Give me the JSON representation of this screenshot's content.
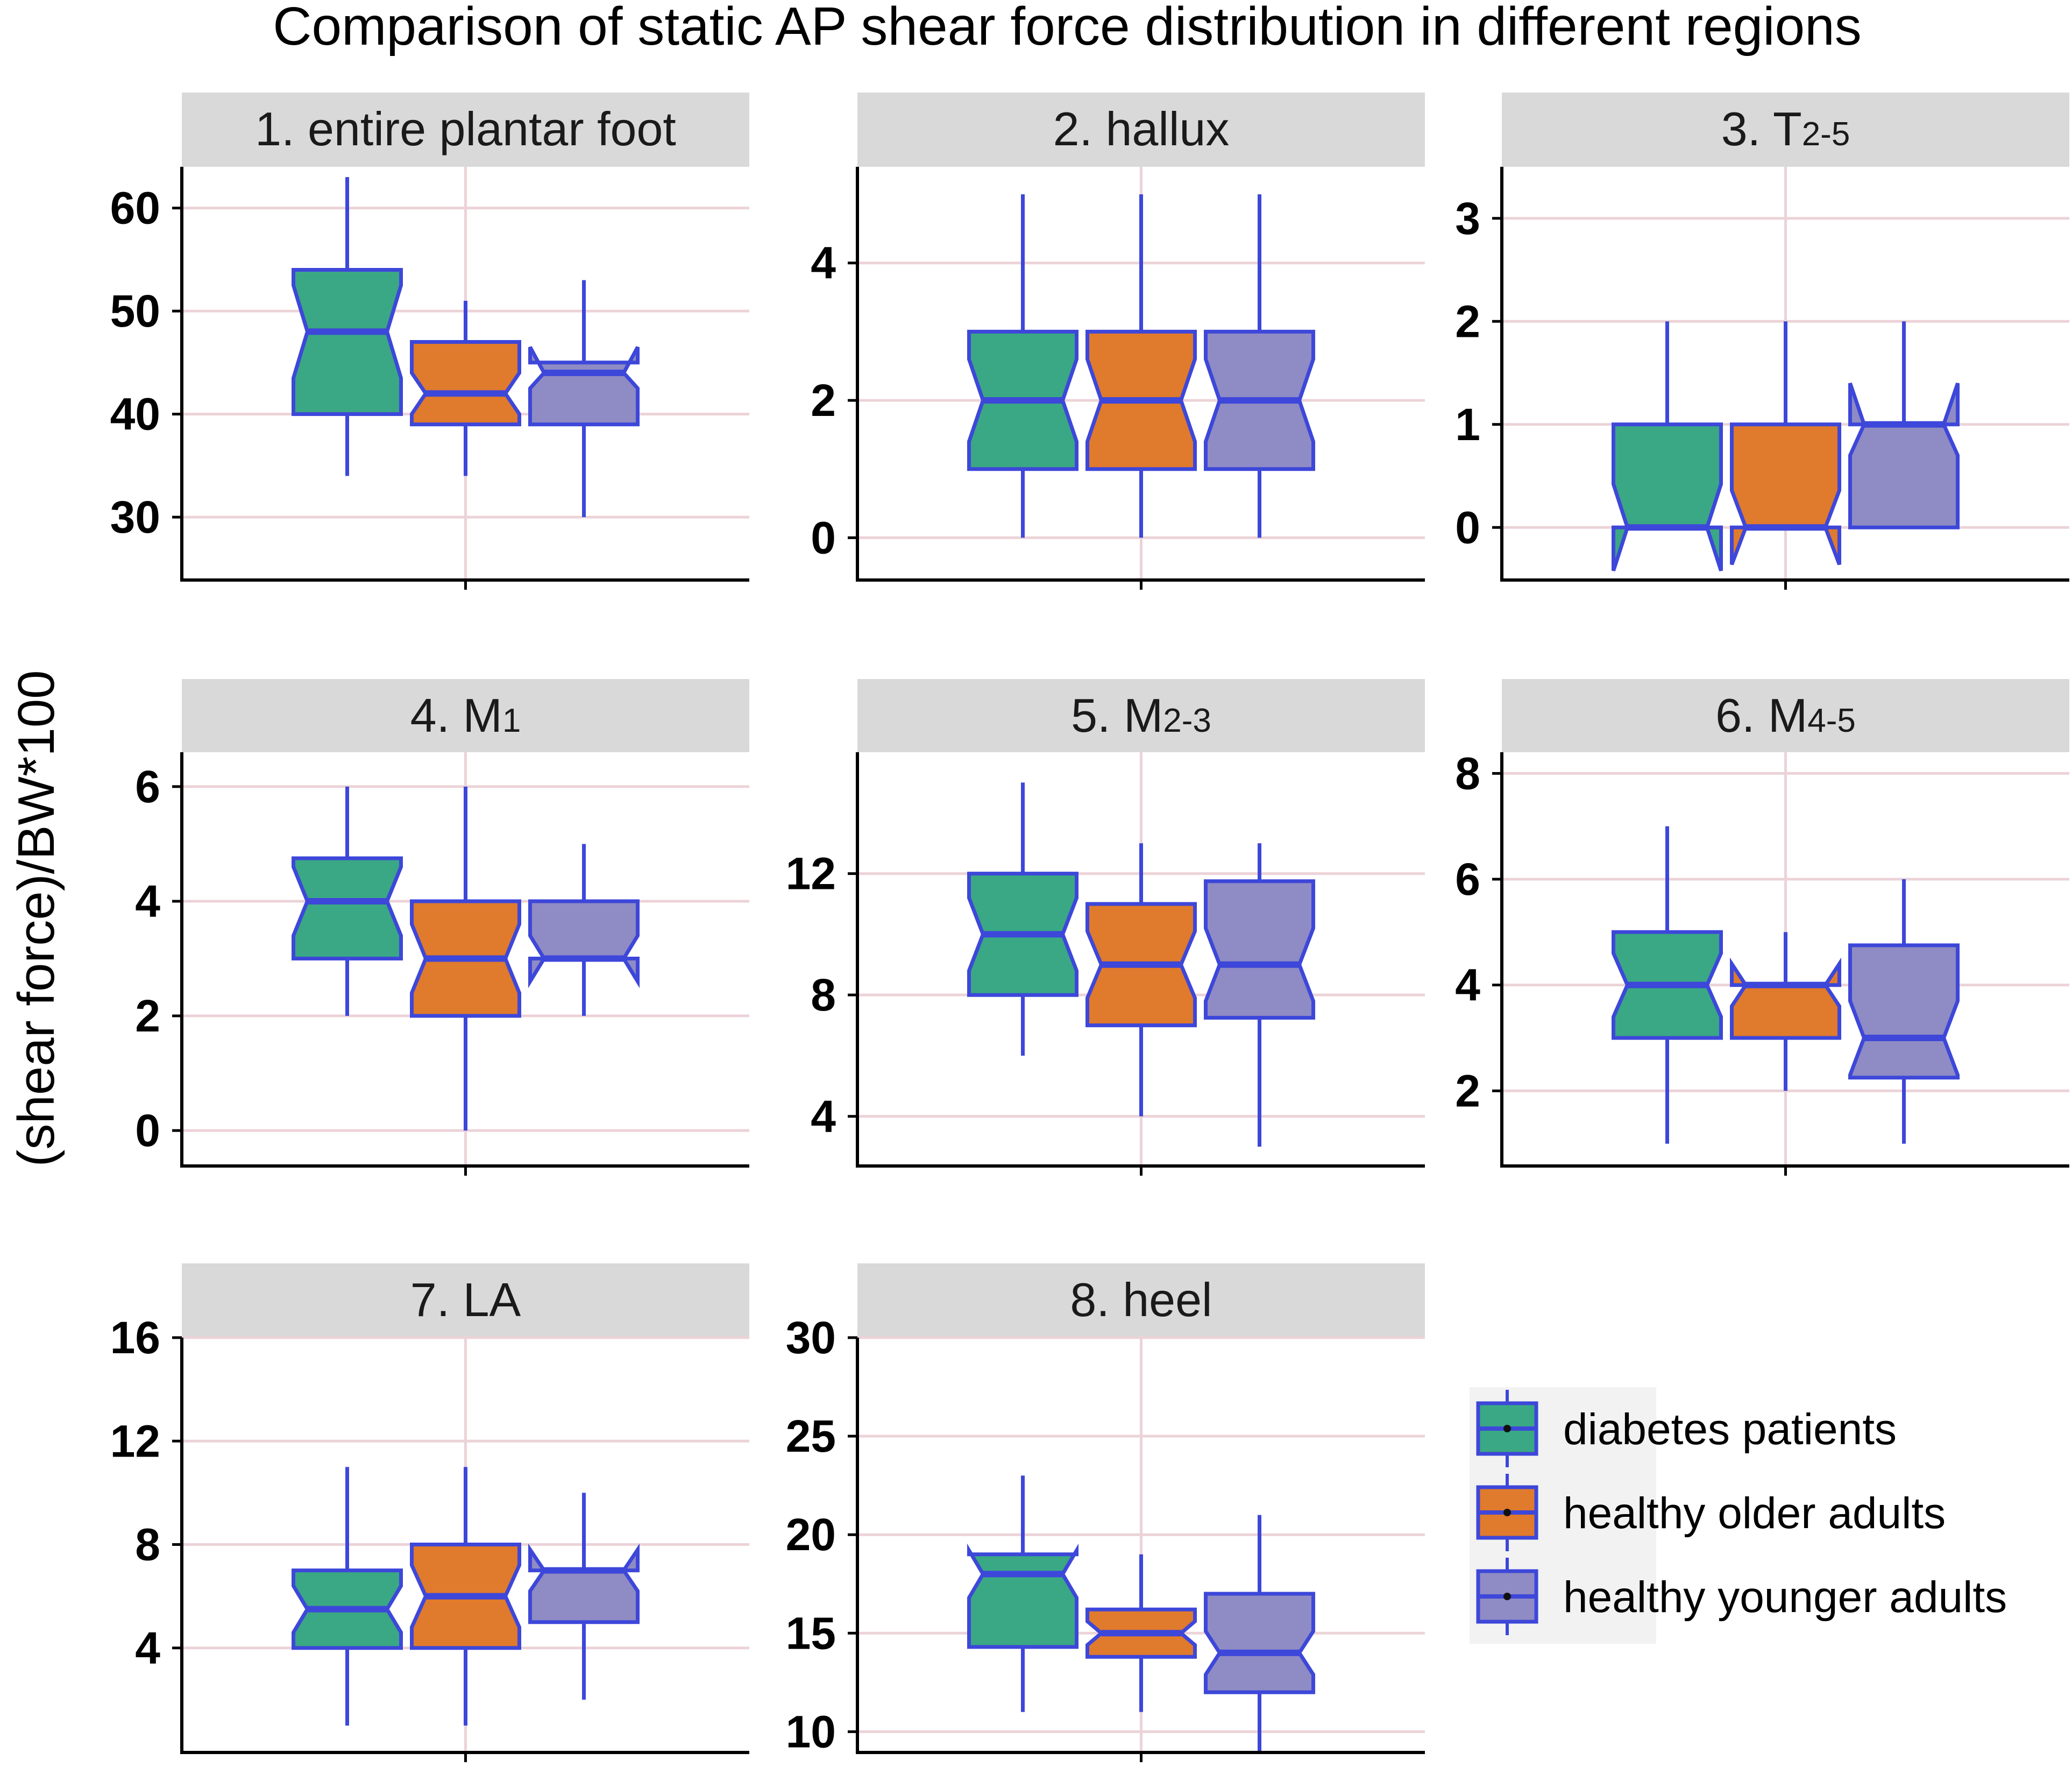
{
  "figure": {
    "title": "Comparison of static AP shear force distribution in different regions",
    "ylabel": "(shear force)/BW*100"
  },
  "colors": {
    "diabetes patients": "#3aa884",
    "healthy older adults": "#e07a2c",
    "healthy younger adults": "#8f8bc4",
    "outline": "#3d47d9",
    "grid": "#ecd3d8",
    "strip": "#d9d9d9",
    "axis": "#000000"
  },
  "legend": {
    "items": [
      "diabetes patients",
      "healthy older adults",
      "healthy younger adults"
    ]
  },
  "chart_data": [
    {
      "type": "boxplot-notched",
      "panel": "1. entire plantar foot",
      "label": "1. entire plantar foot",
      "ylim": [
        24,
        64
      ],
      "yticks": [
        30,
        40,
        50,
        60
      ],
      "series": [
        {
          "name": "diabetes patients",
          "min": 34,
          "q1": 40,
          "median": 48,
          "q3": 54,
          "max": 63,
          "notch_lo": 43.5,
          "notch_hi": 52.5
        },
        {
          "name": "healthy older adults",
          "min": 34,
          "q1": 39,
          "median": 42,
          "q3": 47,
          "max": 51,
          "notch_lo": 40,
          "notch_hi": 44
        },
        {
          "name": "healthy younger adults",
          "min": 30,
          "q1": 39,
          "median": 44,
          "q3": 45,
          "max": 53,
          "notch_lo": 42.5,
          "notch_hi": 46.5
        }
      ]
    },
    {
      "type": "boxplot-notched",
      "panel": "2. hallux",
      "label": "2. hallux",
      "ylim": [
        -0.6,
        5.4
      ],
      "yticks": [
        0,
        2,
        4
      ],
      "series": [
        {
          "name": "diabetes patients",
          "min": 0,
          "q1": 1,
          "median": 2,
          "q3": 3,
          "max": 5,
          "notch_lo": 1.4,
          "notch_hi": 2.6
        },
        {
          "name": "healthy older adults",
          "min": 0,
          "q1": 1,
          "median": 2,
          "q3": 3,
          "max": 5,
          "notch_lo": 1.4,
          "notch_hi": 2.6
        },
        {
          "name": "healthy younger adults",
          "min": 0,
          "q1": 1,
          "median": 2,
          "q3": 3,
          "max": 5,
          "notch_lo": 1.4,
          "notch_hi": 2.6
        }
      ]
    },
    {
      "type": "boxplot-notched",
      "panel": "3. T2-5",
      "label": "3. T",
      "label_sub": "2-5",
      "ylim": [
        -0.5,
        3.5
      ],
      "yticks": [
        0,
        1,
        2,
        3
      ],
      "series": [
        {
          "name": "diabetes patients",
          "min": 0,
          "q1": 0,
          "median": 0,
          "q3": 1,
          "max": 2,
          "notch_lo": -0.42,
          "notch_hi": 0.42
        },
        {
          "name": "healthy older adults",
          "min": 0,
          "q1": 0,
          "median": 0,
          "q3": 1,
          "max": 2,
          "notch_lo": -0.36,
          "notch_hi": 0.36
        },
        {
          "name": "healthy younger adults",
          "min": 0,
          "q1": 0,
          "median": 1,
          "q3": 1,
          "max": 2,
          "notch_lo": 0.7,
          "notch_hi": 1.4
        }
      ]
    },
    {
      "type": "boxplot-notched",
      "panel": "4. M1",
      "label": "4. M",
      "label_sub": "1",
      "ylim": [
        -0.6,
        6.6
      ],
      "yticks": [
        0,
        2,
        4,
        6
      ],
      "series": [
        {
          "name": "diabetes patients",
          "min": 2,
          "q1": 3,
          "median": 4,
          "q3": 4.75,
          "max": 6,
          "notch_lo": 3.4,
          "notch_hi": 4.6
        },
        {
          "name": "healthy older adults",
          "min": 0,
          "q1": 2,
          "median": 3,
          "q3": 4,
          "max": 6,
          "notch_lo": 2.4,
          "notch_hi": 3.6
        },
        {
          "name": "healthy younger adults",
          "min": 2,
          "q1": 3,
          "median": 3,
          "q3": 4,
          "max": 5,
          "notch_lo": 2.6,
          "notch_hi": 3.4
        }
      ]
    },
    {
      "type": "boxplot-notched",
      "panel": "5. M2-3",
      "label": "5. M",
      "label_sub": "2-3",
      "ylim": [
        2.4,
        16
      ],
      "yticks": [
        4,
        8,
        12
      ],
      "series": [
        {
          "name": "diabetes patients",
          "min": 6,
          "q1": 8,
          "median": 10,
          "q3": 12,
          "max": 15,
          "notch_lo": 8.8,
          "notch_hi": 11.2
        },
        {
          "name": "healthy older adults",
          "min": 4,
          "q1": 7,
          "median": 9,
          "q3": 11,
          "max": 13,
          "notch_lo": 7.9,
          "notch_hi": 10.1
        },
        {
          "name": "healthy younger adults",
          "min": 3,
          "q1": 7.25,
          "median": 9,
          "q3": 11.75,
          "max": 13,
          "notch_lo": 7.8,
          "notch_hi": 10.2
        }
      ]
    },
    {
      "type": "boxplot-notched",
      "panel": "6. M4-5",
      "label": "6. M",
      "label_sub": "4-5",
      "ylim": [
        0.6,
        8.4
      ],
      "yticks": [
        2,
        4,
        6,
        8
      ],
      "series": [
        {
          "name": "diabetes patients",
          "min": 1,
          "q1": 3,
          "median": 4,
          "q3": 5,
          "max": 7,
          "notch_lo": 3.4,
          "notch_hi": 4.6
        },
        {
          "name": "healthy older adults",
          "min": 2,
          "q1": 3,
          "median": 4,
          "q3": 4,
          "max": 5,
          "notch_lo": 3.6,
          "notch_hi": 4.4
        },
        {
          "name": "healthy younger adults",
          "min": 1,
          "q1": 2.25,
          "median": 3,
          "q3": 4.75,
          "max": 6,
          "notch_lo": 2.3,
          "notch_hi": 3.7
        }
      ]
    },
    {
      "type": "boxplot-notched",
      "panel": "7. LA",
      "label": "7. LA",
      "ylim": [
        0,
        16
      ],
      "yticks": [
        4,
        8,
        12,
        16
      ],
      "series": [
        {
          "name": "diabetes patients",
          "min": 1,
          "q1": 4,
          "median": 5.5,
          "q3": 7,
          "max": 11,
          "notch_lo": 4.6,
          "notch_hi": 6.4
        },
        {
          "name": "healthy older adults",
          "min": 1,
          "q1": 4,
          "median": 6,
          "q3": 8,
          "max": 11,
          "notch_lo": 4.8,
          "notch_hi": 7.2
        },
        {
          "name": "healthy younger adults",
          "min": 2,
          "q1": 5,
          "median": 7,
          "q3": 7,
          "max": 10,
          "notch_lo": 6.2,
          "notch_hi": 7.8
        }
      ]
    },
    {
      "type": "boxplot-notched",
      "panel": "8. heel",
      "label": "8. heel",
      "ylim": [
        9,
        30
      ],
      "yticks": [
        10,
        15,
        20,
        25,
        30
      ],
      "series": [
        {
          "name": "diabetes patients",
          "min": 11,
          "q1": 14.3,
          "median": 18,
          "q3": 19,
          "max": 23,
          "notch_lo": 16.8,
          "notch_hi": 19.2
        },
        {
          "name": "healthy older adults",
          "min": 11,
          "q1": 13.8,
          "median": 15,
          "q3": 16.2,
          "max": 19,
          "notch_lo": 14.4,
          "notch_hi": 15.6
        },
        {
          "name": "healthy younger adults",
          "min": 9,
          "q1": 12,
          "median": 14,
          "q3": 17,
          "max": 21,
          "notch_lo": 12.9,
          "notch_hi": 15.1
        }
      ]
    }
  ]
}
